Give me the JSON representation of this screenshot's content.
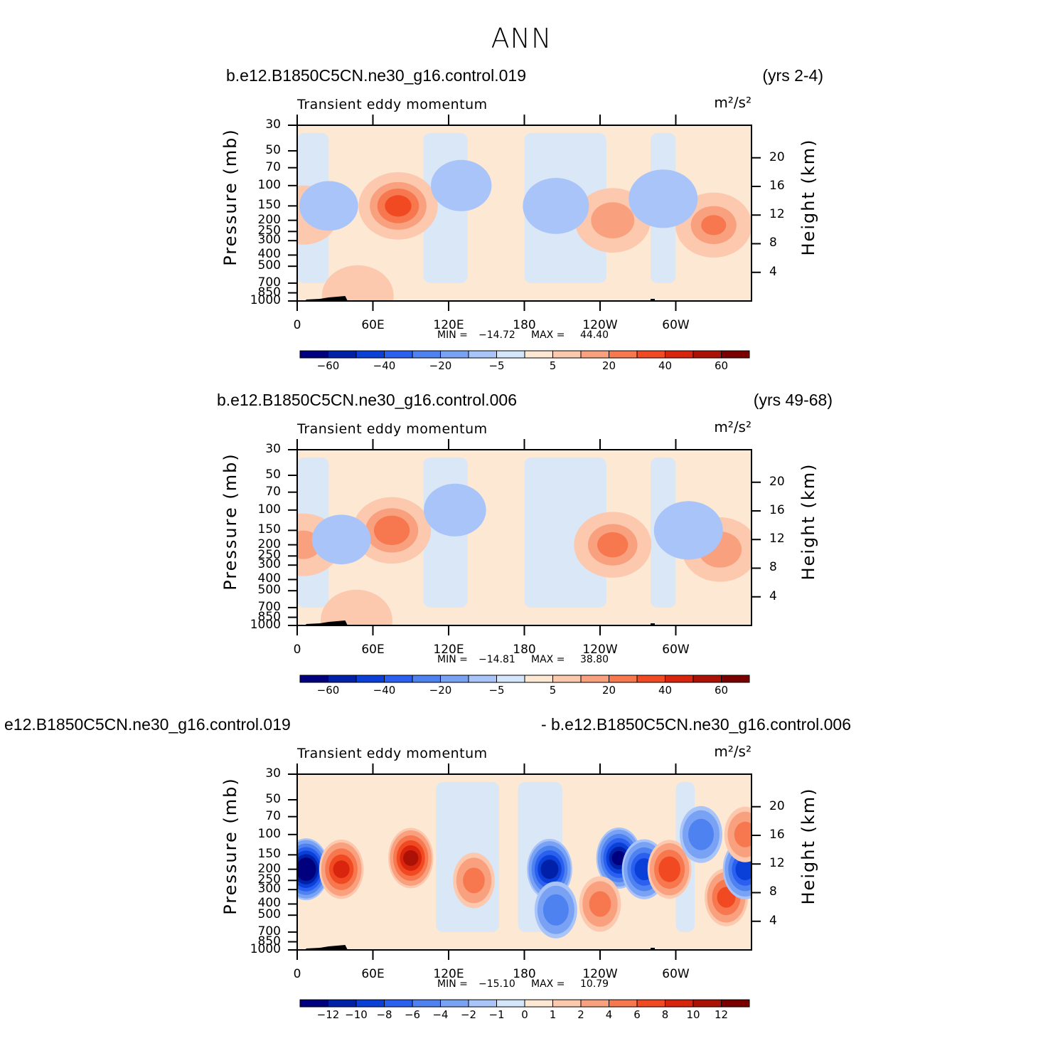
{
  "figure": {
    "title": "ANN"
  },
  "colors": {
    "blues": [
      "#00007f",
      "#0020a8",
      "#0a3fd8",
      "#2a5ff0",
      "#4e82f0",
      "#7aa2f4",
      "#a8c4f8",
      "#d4e6fc"
    ],
    "reds": [
      "#fde8d4",
      "#fcc8ae",
      "#f9a07e",
      "#f7774e",
      "#f14a22",
      "#d9250d",
      "#ab1205",
      "#7a0000"
    ],
    "axis": "#000000"
  },
  "chart_data": [
    {
      "type": "heatmap",
      "case_name": "b.e12.B1850C5CN.ne30_g16.control.019",
      "years": "(yrs 2-4)",
      "title": "Transient eddy momentum",
      "units": "m²/s²",
      "ylabel": "Pressure (mb)",
      "y2label": "Height (km)",
      "x_ticks": [
        "0",
        "60E",
        "120E",
        "180",
        "120W",
        "60W"
      ],
      "x_range": [
        0,
        360
      ],
      "y_ticks": [
        "30",
        "50",
        "70",
        "100",
        "150",
        "200",
        "250",
        "300",
        "400",
        "500",
        "700",
        "850",
        "1000"
      ],
      "y_values": [
        30,
        50,
        70,
        100,
        150,
        200,
        250,
        300,
        400,
        500,
        700,
        850,
        1000
      ],
      "y2_ticks": [
        "20",
        "16",
        "12",
        "8",
        "4"
      ],
      "stats": {
        "min_label": "MIN =",
        "min": "−14.72",
        "max_label": "MAX =",
        "max": "44.40"
      },
      "colorbar_labels": [
        "−60",
        "−40",
        "−20",
        "−5",
        "5",
        "20",
        "40",
        "60"
      ],
      "features": [
        {
          "lon": 80,
          "p": 150,
          "value": 44
        },
        {
          "lon": 250,
          "p": 200,
          "value": 28
        },
        {
          "lon": 330,
          "p": 220,
          "value": 30
        },
        {
          "lon": 5,
          "p": 180,
          "value": 15
        },
        {
          "lon": 48,
          "p": 900,
          "value": 18
        },
        {
          "lon": 290,
          "p": 130,
          "value": -14
        },
        {
          "lon": 205,
          "p": 150,
          "value": -11
        },
        {
          "lon": 130,
          "p": 100,
          "value": -7
        },
        {
          "lon": 25,
          "p": 150,
          "value": -6
        }
      ]
    },
    {
      "type": "heatmap",
      "case_name": "b.e12.B1850C5CN.ne30_g16.control.006",
      "years": "(yrs 49-68)",
      "title": "Transient eddy momentum",
      "units": "m²/s²",
      "ylabel": "Pressure (mb)",
      "y2label": "Height (km)",
      "x_ticks": [
        "0",
        "60E",
        "120E",
        "180",
        "120W",
        "60W"
      ],
      "x_range": [
        0,
        360
      ],
      "y_ticks": [
        "30",
        "50",
        "70",
        "100",
        "150",
        "200",
        "250",
        "300",
        "400",
        "500",
        "700",
        "850",
        "1000"
      ],
      "y_values": [
        30,
        50,
        70,
        100,
        150,
        200,
        250,
        300,
        400,
        500,
        700,
        850,
        1000
      ],
      "y2_ticks": [
        "20",
        "16",
        "12",
        "8",
        "4"
      ],
      "stats": {
        "min_label": "MIN =",
        "min": "−14.81",
        "max_label": "MAX =",
        "max": "38.80"
      },
      "colorbar_labels": [
        "−60",
        "−40",
        "−20",
        "−5",
        "5",
        "20",
        "40",
        "60"
      ],
      "features": [
        {
          "lon": 75,
          "p": 150,
          "value": 38
        },
        {
          "lon": 250,
          "p": 200,
          "value": 34
        },
        {
          "lon": 335,
          "p": 220,
          "value": 28
        },
        {
          "lon": 5,
          "p": 200,
          "value": 22
        },
        {
          "lon": 47,
          "p": 900,
          "value": 18
        },
        {
          "lon": 310,
          "p": 150,
          "value": -14
        },
        {
          "lon": 125,
          "p": 100,
          "value": -8
        },
        {
          "lon": 35,
          "p": 180,
          "value": -6
        }
      ]
    },
    {
      "type": "heatmap",
      "case_name": "e12.B1850C5CN.ne30_g16.control.019",
      "years": "- b.e12.B1850C5CN.ne30_g16.control.006",
      "title": "Transient eddy momentum",
      "units": "m²/s²",
      "ylabel": "Pressure (mb)",
      "y2label": "Height (km)",
      "x_ticks": [
        "0",
        "60E",
        "120E",
        "180",
        "120W",
        "60W"
      ],
      "x_range": [
        0,
        360
      ],
      "y_ticks": [
        "30",
        "50",
        "70",
        "100",
        "150",
        "200",
        "250",
        "300",
        "400",
        "500",
        "700",
        "850",
        "1000"
      ],
      "y_values": [
        30,
        50,
        70,
        100,
        150,
        200,
        250,
        300,
        400,
        500,
        700,
        850,
        1000
      ],
      "y2_ticks": [
        "20",
        "16",
        "12",
        "8",
        "4"
      ],
      "stats": {
        "min_label": "MIN =",
        "min": "−15.10",
        "max_label": "MAX =",
        "max": "10.79"
      },
      "colorbar_labels": [
        "−12",
        "−10",
        "−8",
        "−6",
        "−4",
        "−2",
        "−1",
        "0",
        "1",
        "2",
        "4",
        "6",
        "8",
        "10",
        "12"
      ],
      "features": [
        {
          "lon": 7,
          "p": 200,
          "value": -15
        },
        {
          "lon": 35,
          "p": 200,
          "value": 8
        },
        {
          "lon": 90,
          "p": 160,
          "value": 10
        },
        {
          "lon": 200,
          "p": 200,
          "value": -11
        },
        {
          "lon": 255,
          "p": 160,
          "value": -12
        },
        {
          "lon": 275,
          "p": 200,
          "value": -9
        },
        {
          "lon": 295,
          "p": 200,
          "value": 7
        },
        {
          "lon": 340,
          "p": 350,
          "value": 6
        },
        {
          "lon": 355,
          "p": 200,
          "value": -9
        },
        {
          "lon": 240,
          "p": 400,
          "value": 4
        },
        {
          "lon": 140,
          "p": 250,
          "value": 4
        },
        {
          "lon": 320,
          "p": 100,
          "value": -5
        },
        {
          "lon": 205,
          "p": 450,
          "value": -5
        },
        {
          "lon": 355,
          "p": 100,
          "value": 4
        }
      ]
    }
  ]
}
